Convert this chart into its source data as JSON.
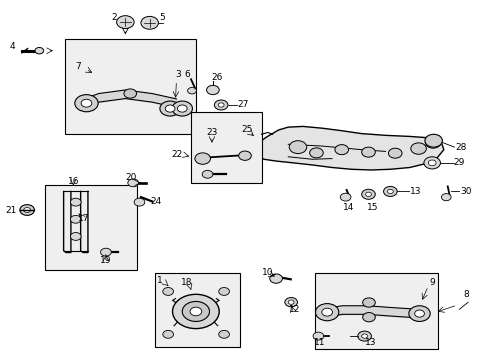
{
  "background_color": "#ffffff",
  "title": "",
  "fig_width": 4.89,
  "fig_height": 3.6,
  "dpi": 100,
  "line_color": "#000000",
  "text_color": "#000000",
  "box_color": "#000000",
  "fill_color": "#f0f0f0"
}
